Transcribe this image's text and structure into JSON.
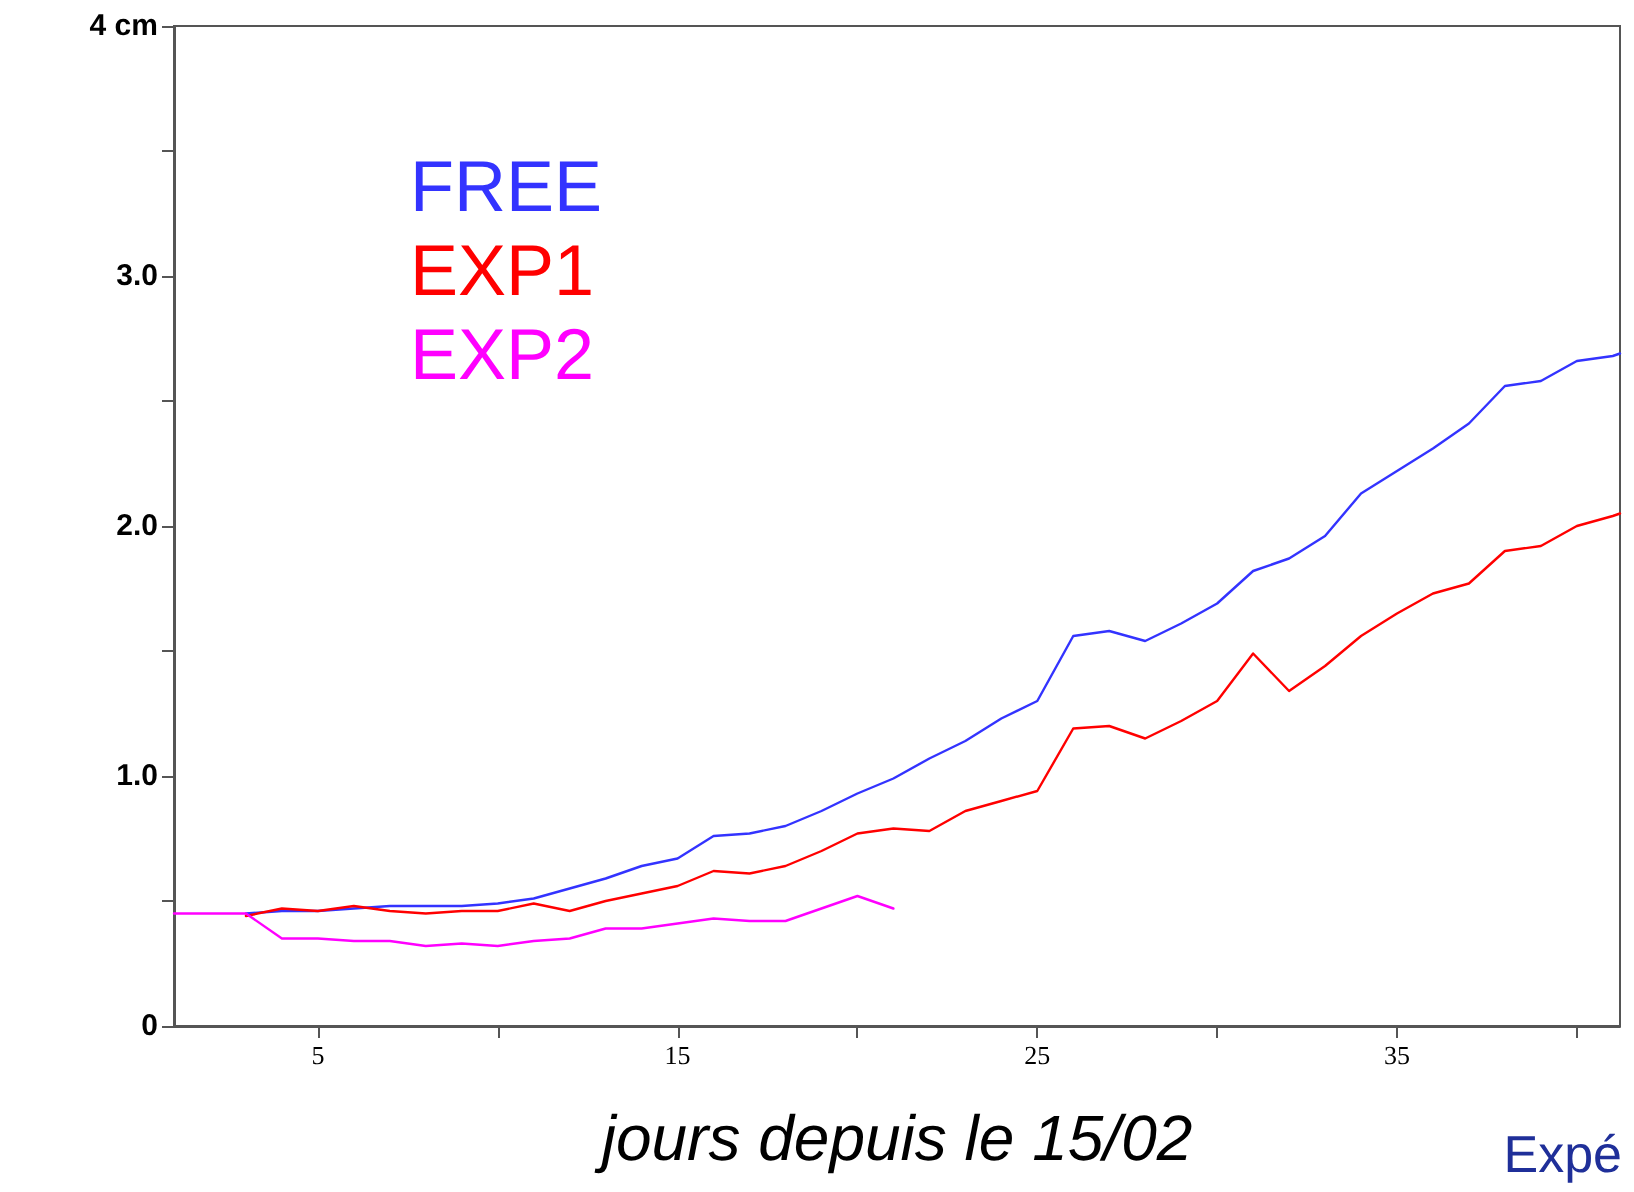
{
  "chart_data": {
    "type": "line",
    "xlabel": "jours depuis le 15/02",
    "annotations": [
      "Expé"
    ],
    "xlim": [
      1,
      41.2
    ],
    "xticks": [
      5,
      {
        "value": 10,
        "label": null
      },
      15,
      {
        "value": 20,
        "label": null
      },
      25,
      {
        "value": 30,
        "label": null
      },
      35,
      {
        "value": 40,
        "label": null
      }
    ],
    "ylim": [
      0,
      4
    ],
    "yticks": [
      {
        "value": 0,
        "label": "0"
      },
      {
        "value": 0.5,
        "label": null
      },
      {
        "value": 1,
        "label": "1.0"
      },
      {
        "value": 1.5,
        "label": null
      },
      {
        "value": 2,
        "label": "2.0"
      },
      {
        "value": 2.5,
        "label": null
      },
      {
        "value": 3,
        "label": "3.0"
      },
      {
        "value": 3.5,
        "label": null
      },
      {
        "value": 4,
        "label": "4 cm"
      }
    ],
    "grid": false,
    "legend": "top left",
    "marker": "none",
    "line_style": "solid",
    "series": [
      {
        "name": "FREE",
        "color": "#3333ff",
        "x": [
          3,
          4,
          5,
          6,
          7,
          8,
          9,
          10,
          11,
          12,
          13,
          14,
          15,
          16,
          17,
          18,
          19,
          20,
          21,
          22,
          23,
          24,
          25,
          26,
          27,
          28,
          29,
          30,
          31,
          32,
          33,
          34,
          35,
          36,
          37,
          38,
          39,
          40,
          41,
          41.2
        ],
        "values": [
          0.45,
          0.46,
          0.46,
          0.47,
          0.48,
          0.48,
          0.48,
          0.49,
          0.51,
          0.55,
          0.59,
          0.64,
          0.67,
          0.76,
          0.77,
          0.8,
          0.86,
          0.93,
          0.99,
          1.07,
          1.14,
          1.23,
          1.3,
          1.56,
          1.58,
          1.54,
          1.61,
          1.69,
          1.82,
          1.87,
          1.96,
          2.13,
          2.22,
          2.31,
          2.41,
          2.56,
          2.58,
          2.66,
          2.68,
          2.69
        ]
      },
      {
        "name": "EXP1",
        "color": "#ff0000",
        "x": [
          3,
          4,
          5,
          6,
          7,
          8,
          9,
          10,
          11,
          12,
          13,
          14,
          15,
          16,
          17,
          18,
          19,
          20,
          21,
          22,
          23,
          24,
          25,
          26,
          27,
          28,
          29,
          30,
          31,
          32,
          33,
          34,
          35,
          36,
          37,
          38,
          39,
          40,
          41,
          41.2
        ],
        "values": [
          0.44,
          0.47,
          0.46,
          0.48,
          0.46,
          0.45,
          0.46,
          0.46,
          0.49,
          0.46,
          0.5,
          0.53,
          0.56,
          0.62,
          0.61,
          0.64,
          0.7,
          0.77,
          0.79,
          0.78,
          0.86,
          0.9,
          0.94,
          1.19,
          1.2,
          1.15,
          1.22,
          1.3,
          1.49,
          1.34,
          1.44,
          1.56,
          1.65,
          1.73,
          1.77,
          1.9,
          1.92,
          2.0,
          2.04,
          2.05
        ]
      },
      {
        "name": "EXP2",
        "color": "#ff00ff",
        "x": [
          1,
          2,
          3,
          4,
          5,
          6,
          7,
          8,
          9,
          10,
          11,
          12,
          13,
          14,
          15,
          16,
          17,
          18,
          19,
          20,
          21
        ],
        "values": [
          0.45,
          0.45,
          0.45,
          0.35,
          0.35,
          0.34,
          0.34,
          0.32,
          0.33,
          0.32,
          0.34,
          0.35,
          0.39,
          0.39,
          0.41,
          0.43,
          0.42,
          0.42,
          0.47,
          0.52,
          0.47
        ]
      }
    ]
  }
}
